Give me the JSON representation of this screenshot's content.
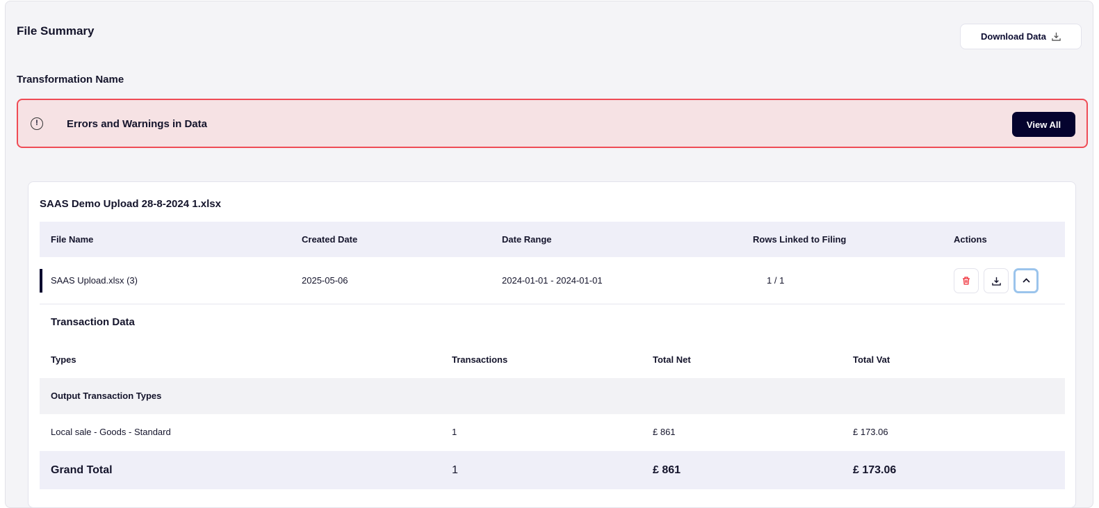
{
  "header": {
    "title": "File Summary",
    "download_label": "Download Data",
    "transformation_name": "Transformation Name"
  },
  "alert": {
    "text": "Errors and Warnings in Data",
    "view_all": "View All",
    "color": "#ef4b55"
  },
  "file": {
    "title": "SAAS Demo Upload 28-8-2024 1.xlsx",
    "columns": [
      "File Name",
      "Created Date",
      "Date Range",
      "Rows Linked to Filing",
      "Actions"
    ],
    "row": {
      "name": "SAAS Upload.xlsx (3)",
      "created": "2025-05-06",
      "range": "2024-01-01 - 2024-01-01",
      "rows": "1 / 1"
    }
  },
  "transactions": {
    "title": "Transaction Data",
    "columns": [
      "Types",
      "Transactions",
      "Total Net",
      "Total Vat"
    ],
    "group": "Output Transaction Types",
    "rows": [
      {
        "type": "Local sale - Goods - Standard",
        "count": "1",
        "net": "£ 861",
        "vat": "£ 173.06"
      }
    ],
    "total": {
      "label": "Grand Total",
      "count": "1",
      "net": "£ 861",
      "vat": "£ 173.06"
    }
  }
}
